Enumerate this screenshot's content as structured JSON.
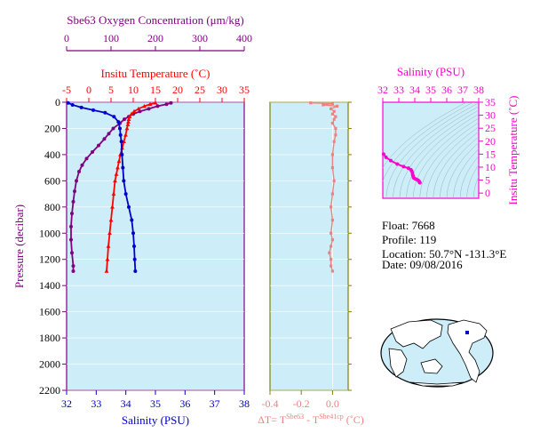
{
  "colors": {
    "oxygen": "#800080",
    "temperature": "#ff0000",
    "salinity": "#0000cc",
    "delta": "#f08080",
    "ts": "#ff00cc",
    "panel_bg": "#cdeef8",
    "axis": "#000000"
  },
  "info": {
    "float_line": "Float:  7668",
    "profile_line": "Profile:  119",
    "location_line": "Location:  50.7°N  -131.3°E",
    "date_line": "Date:  09/08/2016"
  },
  "chart_data": [
    {
      "type": "line",
      "panel": "main-profile",
      "ylabel": "Pressure (decibar)",
      "ylim": [
        2200,
        0
      ],
      "yticks": [
        "0",
        "200",
        "400",
        "600",
        "800",
        "1000",
        "1200",
        "1400",
        "1600",
        "1800",
        "2000",
        "2200"
      ],
      "axes": {
        "oxygen": {
          "label": "Sbe63 Oxygen Concentration (μm/kg)",
          "lim": [
            0,
            400
          ],
          "ticks": [
            "0",
            "100",
            "200",
            "300",
            "400"
          ]
        },
        "temperature": {
          "label": "Insitu Temperature (˚C)",
          "lim": [
            -5,
            35
          ],
          "ticks": [
            "-5",
            "0",
            "5",
            "10",
            "15",
            "20",
            "25",
            "30",
            "35"
          ]
        },
        "salinity": {
          "label": "Salinity (PSU)",
          "lim": [
            32,
            38
          ],
          "ticks": [
            "32",
            "33",
            "34",
            "35",
            "36",
            "37",
            "38"
          ]
        }
      },
      "series": [
        {
          "key": "oxygen",
          "marker": "circle",
          "points": [
            [
              235,
              5
            ],
            [
              225,
              15
            ],
            [
              205,
              30
            ],
            [
              185,
              50
            ],
            [
              165,
              70
            ],
            [
              150,
              90
            ],
            [
              140,
              110
            ],
            [
              130,
              130
            ],
            [
              120,
              160
            ],
            [
              105,
              200
            ],
            [
              95,
              240
            ],
            [
              85,
              280
            ],
            [
              72,
              330
            ],
            [
              58,
              380
            ],
            [
              45,
              430
            ],
            [
              35,
              480
            ],
            [
              28,
              530
            ],
            [
              22,
              600
            ],
            [
              18,
              680
            ],
            [
              15,
              760
            ],
            [
              12,
              850
            ],
            [
              10,
              950
            ],
            [
              10,
              1050
            ],
            [
              12,
              1150
            ],
            [
              15,
              1250
            ],
            [
              15,
              1290
            ]
          ]
        },
        {
          "key": "temperature",
          "marker": "triangle",
          "points": [
            [
              15.0,
              5
            ],
            [
              13.8,
              15
            ],
            [
              12.5,
              30
            ],
            [
              11.2,
              50
            ],
            [
              10.2,
              70
            ],
            [
              9.6,
              90
            ],
            [
              9.2,
              110
            ],
            [
              9.0,
              130
            ],
            [
              8.9,
              150
            ],
            [
              8.8,
              170
            ],
            [
              8.6,
              200
            ],
            [
              8.3,
              250
            ],
            [
              7.9,
              300
            ],
            [
              7.5,
              350
            ],
            [
              7.1,
              400
            ],
            [
              6.8,
              450
            ],
            [
              6.5,
              500
            ],
            [
              6.2,
              550
            ],
            [
              5.9,
              600
            ],
            [
              5.6,
              700
            ],
            [
              5.3,
              800
            ],
            [
              5.0,
              900
            ],
            [
              4.7,
              1000
            ],
            [
              4.4,
              1100
            ],
            [
              4.2,
              1200
            ],
            [
              4.0,
              1290
            ]
          ]
        },
        {
          "key": "salinity",
          "marker": "circle",
          "points": [
            [
              32.05,
              5
            ],
            [
              32.2,
              20
            ],
            [
              32.5,
              40
            ],
            [
              32.9,
              60
            ],
            [
              33.3,
              80
            ],
            [
              33.6,
              110
            ],
            [
              33.75,
              150
            ],
            [
              33.8,
              200
            ],
            [
              33.82,
              250
            ],
            [
              33.85,
              300
            ],
            [
              33.87,
              400
            ],
            [
              33.9,
              500
            ],
            [
              33.93,
              600
            ],
            [
              34.0,
              700
            ],
            [
              34.1,
              800
            ],
            [
              34.2,
              900
            ],
            [
              34.25,
              1000
            ],
            [
              34.28,
              1100
            ],
            [
              34.3,
              1200
            ],
            [
              34.32,
              1290
            ]
          ]
        }
      ]
    },
    {
      "type": "line",
      "panel": "delta-t",
      "xlabel": "ΔT= T^Sbe63 - T^Sbe41cp (˚C)",
      "xlabel_main": "ΔT= T",
      "xlabel_sup1": "Sbe63",
      "xlabel_mid": " - T",
      "xlabel_sup2": "Sbe41cp",
      "xlabel_unit": " (˚C)",
      "xlim": [
        -0.4,
        0.1
      ],
      "ylim": [
        2200,
        0
      ],
      "xticks": [
        "-0.4",
        "-0.2",
        "0.0"
      ],
      "series": [
        {
          "key": "delta",
          "marker": "square",
          "points": [
            [
              -0.14,
              5
            ],
            [
              0.0,
              10
            ],
            [
              -0.06,
              20
            ],
            [
              0.03,
              30
            ],
            [
              -0.01,
              50
            ],
            [
              0.01,
              70
            ],
            [
              0.0,
              90
            ],
            [
              0.02,
              110
            ],
            [
              0.01,
              130
            ],
            [
              0.0,
              160
            ],
            [
              0.02,
              200
            ],
            [
              0.02,
              250
            ],
            [
              0.01,
              300
            ],
            [
              0.0,
              400
            ],
            [
              0.0,
              500
            ],
            [
              0.01,
              600
            ],
            [
              0.0,
              700
            ],
            [
              -0.01,
              800
            ],
            [
              0.0,
              900
            ],
            [
              -0.01,
              1000
            ],
            [
              0.0,
              1050
            ],
            [
              -0.01,
              1100
            ],
            [
              -0.02,
              1150
            ],
            [
              -0.01,
              1200
            ],
            [
              -0.01,
              1250
            ],
            [
              0.0,
              1290
            ]
          ]
        }
      ]
    },
    {
      "type": "scatter",
      "panel": "ts-diagram",
      "xlabel": "Salinity (PSU)",
      "ylabel": "Insitu Temperature (˚C)",
      "xlim": [
        32,
        38
      ],
      "ylim": [
        -2,
        35
      ],
      "xticks": [
        "32",
        "33",
        "34",
        "35",
        "36",
        "37",
        "38"
      ],
      "yticks": [
        "0",
        "5",
        "10",
        "15",
        "20",
        "25",
        "30",
        "35"
      ],
      "series": [
        {
          "key": "ts",
          "marker": "circle",
          "points": [
            [
              32.05,
              15.0
            ],
            [
              32.2,
              13.8
            ],
            [
              32.5,
              12.5
            ],
            [
              32.9,
              11.2
            ],
            [
              33.3,
              10.2
            ],
            [
              33.6,
              9.6
            ],
            [
              33.75,
              9.0
            ],
            [
              33.8,
              8.6
            ],
            [
              33.85,
              7.9
            ],
            [
              33.87,
              7.1
            ],
            [
              33.9,
              6.5
            ],
            [
              33.93,
              5.9
            ],
            [
              34.0,
              5.6
            ],
            [
              34.1,
              5.3
            ],
            [
              34.2,
              5.0
            ],
            [
              34.25,
              4.7
            ],
            [
              34.28,
              4.4
            ],
            [
              34.3,
              4.2
            ],
            [
              34.32,
              4.0
            ]
          ]
        }
      ]
    }
  ]
}
